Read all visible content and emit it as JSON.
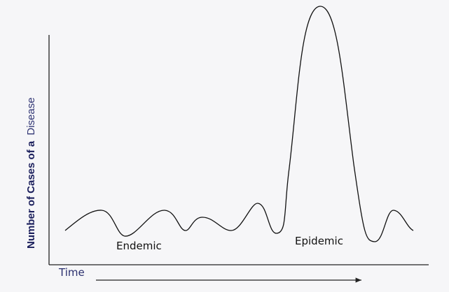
{
  "diagram": {
    "y_axis_label": {
      "bold_part": "Number of Cases of a",
      "light_part": "Disease"
    },
    "x_axis_label": "Time",
    "regions": {
      "endemic": "Endemic",
      "epidemic": "Epidemic"
    }
  },
  "colors": {
    "background": "#f6f6f8",
    "axis": "#222222",
    "curve": "#111111",
    "label_navy": "#1b1f5c"
  }
}
